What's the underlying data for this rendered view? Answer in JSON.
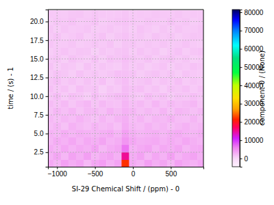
{
  "chart_data": {
    "type": "heatmap",
    "x_label": "SI-29 Chemical Shift / (ppm) - 0",
    "y_label": "time / (s) - 1",
    "xlim": [
      -1120,
      930
    ],
    "ylim": [
      0.56,
      21.6
    ],
    "xticks": [
      {
        "value": -1000,
        "label": "−1000"
      },
      {
        "value": -500,
        "label": "−500"
      },
      0,
      500
    ],
    "yticks": [
      2.5,
      {
        "value": 5,
        "label": "5.0"
      },
      7.5,
      {
        "value": 10,
        "label": "10.0"
      },
      12.5,
      {
        "value": 15,
        "label": "15.0"
      },
      17.5,
      {
        "value": 20,
        "label": "20.0"
      }
    ],
    "grid": true,
    "x": [
      -1100,
      -1000,
      -900,
      -800,
      -700,
      -600,
      -500,
      -400,
      -300,
      -200,
      -100,
      0,
      100,
      200,
      300,
      400,
      500,
      600,
      700,
      800,
      900
    ],
    "y": [
      1,
      2,
      3,
      4,
      5,
      6,
      7,
      8,
      9,
      10,
      11,
      12,
      13,
      14,
      15,
      16,
      17,
      18,
      19,
      20,
      21
    ],
    "values": [
      [
        3200,
        2400,
        3800,
        2900,
        3500,
        2100,
        3300,
        4000,
        2700,
        3600,
        22000,
        3100,
        2500,
        3900,
        2800,
        3400,
        2200,
        3700,
        3000,
        2600,
        3300
      ],
      [
        2600,
        3400,
        2200,
        3600,
        2800,
        3900,
        2400,
        3100,
        3500,
        2700,
        15000,
        2900,
        3700,
        2300,
        3300,
        2600,
        3800,
        2500,
        3200,
        3600,
        2700
      ],
      [
        2900,
        2300,
        3300,
        2500,
        3100,
        2700,
        3600,
        2200,
        3000,
        3400,
        6500,
        2600,
        3100,
        3500,
        2400,
        3200,
        2800,
        3400,
        2300,
        2900,
        3100
      ],
      [
        2200,
        3000,
        2600,
        3300,
        2400,
        3200,
        2800,
        3500,
        2500,
        2900,
        4500,
        3300,
        2700,
        2900,
        3100,
        2500,
        3000,
        2600,
        3300,
        2700,
        2400
      ],
      [
        2500,
        2100,
        2900,
        2300,
        2800,
        2600,
        2300,
        2700,
        3100,
        2400,
        3800,
        2700,
        2300,
        2600,
        2800,
        2200,
        2700,
        3000,
        2500,
        2300,
        2800
      ],
      [
        1800,
        2300,
        1500,
        2600,
        2000,
        1700,
        2400,
        1900,
        2200,
        1600,
        3000,
        2100,
        1800,
        2500,
        1900,
        2300,
        1700,
        2100,
        2600,
        1900,
        2200
      ],
      [
        2100,
        1600,
        2200,
        1800,
        2500,
        1900,
        1500,
        2300,
        1700,
        2400,
        2800,
        1800,
        2400,
        1600,
        2200,
        2000,
        2500,
        1800,
        1700,
        2300,
        1600
      ],
      [
        1500,
        2200,
        1700,
        2300,
        1400,
        2100,
        2000,
        1600,
        2500,
        1900,
        2600,
        2200,
        1600,
        2100,
        1700,
        2400,
        1500,
        2300,
        2000,
        1600,
        2100
      ],
      [
        1900,
        1400,
        2000,
        1200,
        1800,
        2200,
        1300,
        2100,
        1600,
        1500,
        2400,
        1700,
        2000,
        1400,
        2300,
        1500,
        2000,
        1600,
        1900,
        2200,
        1400
      ],
      [
        1200,
        1800,
        900,
        1600,
        1300,
        700,
        1700,
        1100,
        1500,
        1900,
        2100,
        1300,
        1000,
        1800,
        1200,
        1600,
        900,
        1400,
        1200,
        1700,
        1300
      ],
      [
        1600,
        1100,
        1500,
        800,
        1700,
        1200,
        1400,
        600,
        1300,
        1000,
        1900,
        1500,
        1700,
        1100,
        1400,
        800,
        1500,
        1200,
        1600,
        1000,
        1500
      ],
      [
        1300,
        1700,
        1000,
        1400,
        900,
        1500,
        1100,
        1600,
        800,
        1400,
        1800,
        1100,
        1300,
        1600,
        900,
        1400,
        1100,
        1700,
        900,
        1300,
        1100
      ],
      [
        900,
        1400,
        1200,
        700,
        1500,
        1000,
        1300,
        900,
        1200,
        1700,
        1600,
        1400,
        800,
        1200,
        1500,
        1000,
        1300,
        800,
        1400,
        1100,
        900
      ],
      [
        1400,
        800,
        1300,
        1100,
        600,
        1400,
        900,
        1300,
        1000,
        800,
        1500,
        900,
        1300,
        700,
        1100,
        1400,
        700,
        1200,
        1000,
        1500,
        1200
      ],
      [
        1100,
        1300,
        700,
        1500,
        1100,
        800,
        1400,
        700,
        1500,
        1200,
        1700,
        1200,
        1000,
        1500,
        800,
        1200,
        1400,
        900,
        1300,
        700,
        1000
      ],
      [
        700,
        1100,
        1400,
        900,
        1300,
        1200,
        600,
        1200,
        900,
        1300,
        1400,
        800,
        1400,
        1000,
        1300,
        600,
        1100,
        1500,
        800,
        1200,
        1400
      ],
      [
        1300,
        900,
        1000,
        1300,
        800,
        1000,
        1300,
        1000,
        1400,
        700,
        1300,
        1300,
        900,
        1200,
        1000,
        1300,
        900,
        1100,
        1400,
        900,
        800
      ],
      [
        1000,
        1400,
        800,
        1100,
        1400,
        700,
        1100,
        1500,
        700,
        1200,
        1500,
        1000,
        1200,
        800,
        1400,
        1000,
        1200,
        700,
        1100,
        1300,
        1200
      ],
      [
        1200,
        700,
        1300,
        900,
        1100,
        1300,
        800,
        1000,
        1300,
        900,
        1200,
        700,
        1400,
        1100,
        700,
        1200,
        800,
        1300,
        900,
        1000,
        1300
      ],
      [
        800,
        1200,
        1100,
        1400,
        900,
        1100,
        1400,
        800,
        1100,
        1300,
        1400,
        1100,
        900,
        1300,
        1100,
        900,
        1400,
        1000,
        1200,
        800,
        1100
      ],
      [
        1100,
        1000,
        900,
        1200,
        1300,
        900,
        1200,
        1100,
        1000,
        1100,
        1300,
        900,
        1100,
        1000,
        1200,
        1100,
        1000,
        1200,
        900,
        1100,
        1000
      ]
    ],
    "colorbar": {
      "label": "component-0 / (None)",
      "lim": [
        -4500,
        81500
      ],
      "ticks": [
        0,
        10000,
        20000,
        30000,
        40000,
        50000,
        60000,
        70000,
        80000
      ]
    }
  }
}
